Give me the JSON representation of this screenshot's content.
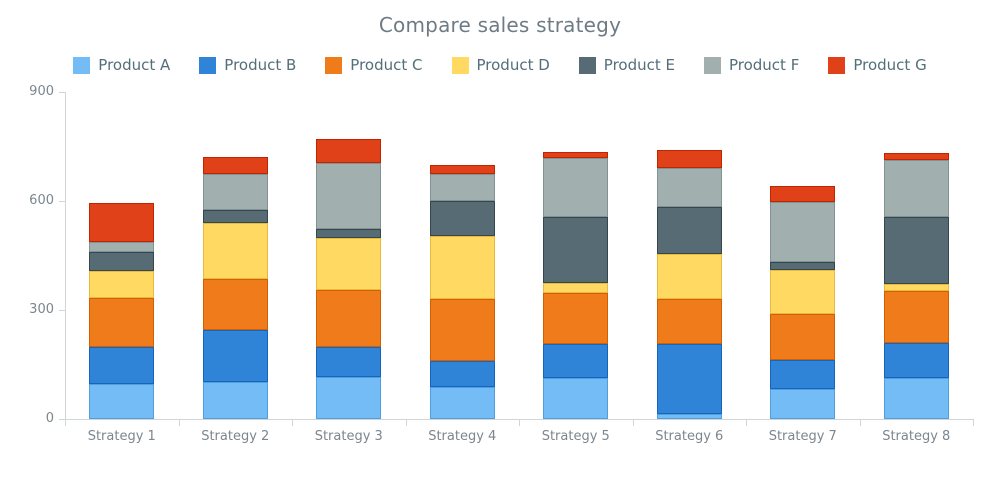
{
  "title": "Compare sales strategy",
  "chart_data": {
    "type": "bar",
    "stacked": true,
    "title": "Compare sales strategy",
    "legend_position": "top",
    "grid": false,
    "ylim": [
      0,
      900
    ],
    "y_ticks": [
      0,
      300,
      600,
      900
    ],
    "categories": [
      "Strategy 1",
      "Strategy 2",
      "Strategy 3",
      "Strategy 4",
      "Strategy 5",
      "Strategy 6",
      "Strategy 7",
      "Strategy 8"
    ],
    "series": [
      {
        "name": "Product A",
        "fill": "#73bcf6",
        "stroke": "#4f9ede",
        "values": [
          96,
          103,
          115,
          87,
          112,
          14,
          83,
          112
        ]
      },
      {
        "name": "Product B",
        "fill": "#3084d7",
        "stroke": "#1565c0",
        "values": [
          101,
          142,
          83,
          74,
          95,
          193,
          80,
          97
        ]
      },
      {
        "name": "Product C",
        "fill": "#f07b1a",
        "stroke": "#d35f00",
        "values": [
          136,
          139,
          158,
          170,
          141,
          124,
          127,
          143
        ]
      },
      {
        "name": "Product D",
        "fill": "#ffd961",
        "stroke": "#e9bb3d",
        "values": [
          75,
          155,
          141,
          172,
          25,
          124,
          119,
          19
        ]
      },
      {
        "name": "Product E",
        "fill": "#576b74",
        "stroke": "#36464e",
        "values": [
          51,
          35,
          26,
          96,
          184,
          129,
          23,
          186
        ]
      },
      {
        "name": "Product F",
        "fill": "#a1afae",
        "stroke": "#829292",
        "values": [
          28,
          100,
          181,
          75,
          160,
          108,
          166,
          157
        ]
      },
      {
        "name": "Product G",
        "fill": "#e04119",
        "stroke": "#bf2600",
        "values": [
          108,
          47,
          67,
          26,
          17,
          49,
          43,
          19
        ]
      }
    ]
  },
  "colors": {
    "title_text": "#6e7b85",
    "legend_text": "#546e7a",
    "axis_text": "#7c868e",
    "axis_line": "#cfd5d8"
  }
}
